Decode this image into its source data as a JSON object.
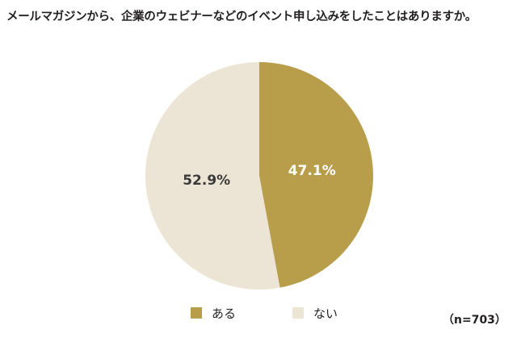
{
  "title": "メールマガジンから、企業のウェビナーなどのイベント申し込みをしたことはありますか。",
  "note": "（n=703）",
  "colors": {
    "aru": "#b89d4b",
    "nai": "#ece4d4",
    "label_on_dark": "#ffffff",
    "label_on_light": "#3a3a3a"
  },
  "chart_data": {
    "type": "pie",
    "title": "メールマガジンから、企業のウェビナーなどのイベント申し込みをしたことはありますか。",
    "categories": [
      "ある",
      "ない"
    ],
    "values": [
      47.1,
      52.9
    ],
    "labels": [
      "47.1%",
      "52.9%"
    ],
    "unit": "%",
    "start": "12 o'clock",
    "direction": "clockwise",
    "legend_position": "bottom",
    "sample_size": "n=703"
  }
}
